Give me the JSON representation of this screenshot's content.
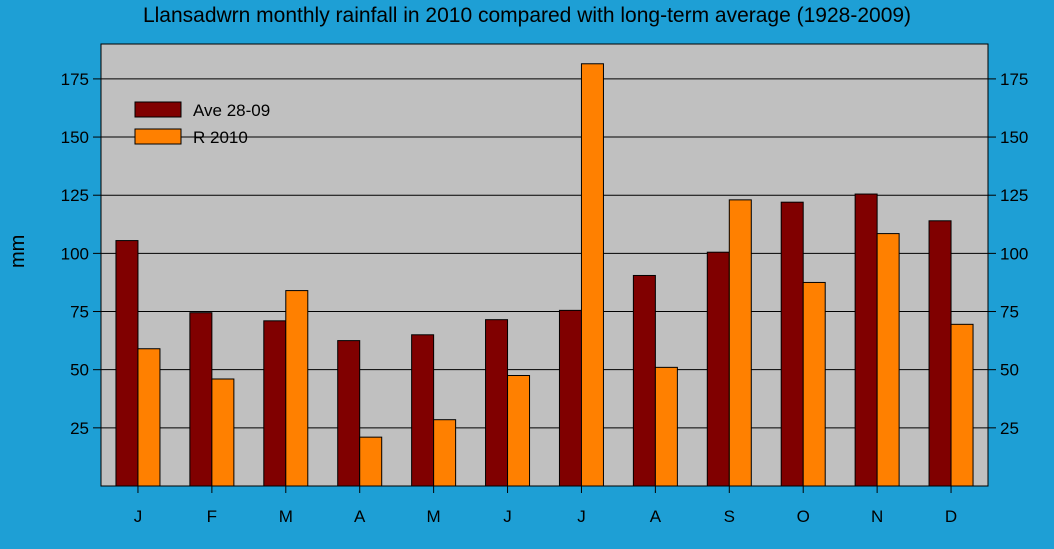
{
  "chart_data": {
    "type": "bar",
    "title": "Llansadwrn monthly rainfall in 2010 compared with long-term average (1928-2009)",
    "xlabel": "",
    "ylabel": "mm",
    "ylim": [
      0,
      190
    ],
    "yticks": [
      25,
      50,
      75,
      100,
      125,
      150,
      175
    ],
    "categories": [
      "J",
      "F",
      "M",
      "A",
      "M",
      "J",
      "J",
      "A",
      "S",
      "O",
      "N",
      "D"
    ],
    "series": [
      {
        "name": "Ave 28-09",
        "color": "#800000",
        "values": [
          105.5,
          74.5,
          71,
          62.5,
          65,
          71.5,
          75.5,
          90.5,
          100.5,
          122,
          125.5,
          114
        ]
      },
      {
        "name": "R 2010",
        "color": "#ff8000",
        "values": [
          59,
          46,
          84,
          21,
          28.5,
          47.5,
          181.5,
          51,
          123,
          87.5,
          108.5,
          69.5
        ]
      }
    ],
    "grid": true,
    "legend_position": "top-left",
    "right_axis": true,
    "plot_background": "#c0c0c0",
    "page_background": "#1e9fd5"
  }
}
